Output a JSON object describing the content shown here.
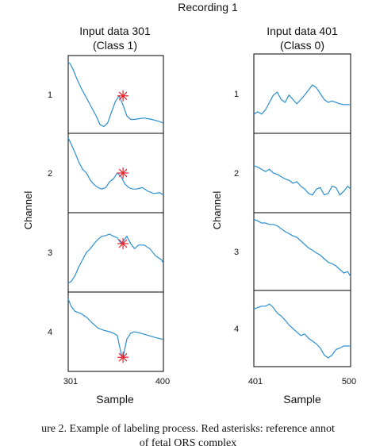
{
  "figure": {
    "title": "Recording 1",
    "caption_line1": "ure 2. Example of labeling process. Red asterisks: reference annot",
    "caption_line2": "of fetal QRS complex"
  },
  "chart_data": [
    {
      "type": "line",
      "title": "Input data 301",
      "subtitle": "(Class 1)",
      "xlabel": "Sample",
      "ylabel": "Channel",
      "x_ticks": [
        "301",
        "400"
      ],
      "xlim": [
        301,
        400
      ],
      "channel_labels": [
        "1",
        "2",
        "3",
        "4"
      ],
      "series": [
        {
          "name": "1",
          "x": [
            301,
            303,
            306,
            310,
            314,
            318,
            322,
            326,
            330,
            334,
            338,
            342,
            346,
            350,
            354,
            358,
            362,
            366,
            370,
            374,
            380,
            388,
            396,
            400
          ],
          "y": [
            0.95,
            0.93,
            0.85,
            0.72,
            0.6,
            0.5,
            0.4,
            0.3,
            0.2,
            0.08,
            0.05,
            0.1,
            0.25,
            0.4,
            0.48,
            0.35,
            0.2,
            0.15,
            0.15,
            0.16,
            0.17,
            0.15,
            0.12,
            0.1
          ]
        },
        {
          "name": "2",
          "x": [
            301,
            304,
            308,
            312,
            316,
            320,
            324,
            328,
            332,
            336,
            340,
            344,
            348,
            352,
            356,
            360,
            364,
            368,
            372,
            378,
            384,
            390,
            396,
            400
          ],
          "y": [
            0.98,
            0.9,
            0.78,
            0.65,
            0.55,
            0.5,
            0.4,
            0.34,
            0.3,
            0.28,
            0.3,
            0.38,
            0.42,
            0.5,
            0.45,
            0.35,
            0.3,
            0.28,
            0.28,
            0.3,
            0.25,
            0.22,
            0.23,
            0.2
          ]
        },
        {
          "name": "3",
          "x": [
            301,
            304,
            308,
            312,
            316,
            320,
            324,
            328,
            332,
            336,
            340,
            344,
            348,
            352,
            356,
            358,
            362,
            366,
            370,
            374,
            380,
            386,
            392,
            398,
            400
          ],
          "y": [
            0.08,
            0.1,
            0.18,
            0.3,
            0.4,
            0.5,
            0.55,
            0.62,
            0.68,
            0.72,
            0.73,
            0.75,
            0.72,
            0.7,
            0.62,
            0.65,
            0.72,
            0.62,
            0.55,
            0.6,
            0.6,
            0.55,
            0.45,
            0.4,
            0.35
          ]
        },
        {
          "name": "4",
          "x": [
            301,
            304,
            308,
            314,
            320,
            326,
            332,
            338,
            344,
            348,
            352,
            356,
            358,
            362,
            366,
            370,
            376,
            384,
            392,
            398,
            400
          ],
          "y": [
            0.95,
            0.85,
            0.78,
            0.75,
            0.7,
            0.62,
            0.55,
            0.52,
            0.5,
            0.48,
            0.45,
            0.2,
            0.15,
            0.4,
            0.48,
            0.5,
            0.48,
            0.45,
            0.42,
            0.4,
            0.4
          ]
        }
      ],
      "annotations": [
        {
          "channel": "1",
          "x": 358,
          "y": 0.48
        },
        {
          "channel": "2",
          "x": 358,
          "y": 0.5
        },
        {
          "channel": "3",
          "x": 358,
          "y": 0.62
        },
        {
          "channel": "4",
          "x": 358,
          "y": 0.15
        }
      ]
    },
    {
      "type": "line",
      "title": "Input data 401",
      "subtitle": "(Class 0)",
      "xlabel": "Sample",
      "ylabel": "Channel",
      "x_ticks": [
        "401",
        "500"
      ],
      "xlim": [
        401,
        500
      ],
      "channel_labels": [
        "1",
        "2",
        "3",
        "4"
      ],
      "series": [
        {
          "name": "1",
          "x": [
            401,
            405,
            409,
            413,
            417,
            421,
            425,
            429,
            433,
            437,
            441,
            445,
            449,
            453,
            457,
            461,
            465,
            469,
            473,
            477,
            481,
            485,
            489,
            493,
            497,
            500
          ],
          "y": [
            0.22,
            0.25,
            0.22,
            0.28,
            0.38,
            0.48,
            0.52,
            0.42,
            0.38,
            0.48,
            0.42,
            0.36,
            0.42,
            0.48,
            0.55,
            0.62,
            0.58,
            0.5,
            0.42,
            0.38,
            0.4,
            0.38,
            0.36,
            0.35,
            0.35,
            0.35
          ]
        },
        {
          "name": "2",
          "x": [
            401,
            405,
            409,
            413,
            417,
            421,
            425,
            429,
            433,
            437,
            441,
            445,
            449,
            453,
            457,
            461,
            465,
            469,
            473,
            477,
            481,
            485,
            489,
            493,
            497,
            500
          ],
          "y": [
            0.6,
            0.58,
            0.55,
            0.52,
            0.55,
            0.5,
            0.48,
            0.45,
            0.42,
            0.4,
            0.36,
            0.38,
            0.32,
            0.28,
            0.22,
            0.2,
            0.28,
            0.3,
            0.2,
            0.22,
            0.32,
            0.3,
            0.2,
            0.25,
            0.32,
            0.28
          ]
        },
        {
          "name": "3",
          "x": [
            401,
            405,
            409,
            413,
            417,
            421,
            425,
            429,
            433,
            437,
            441,
            445,
            449,
            453,
            457,
            461,
            465,
            469,
            473,
            477,
            481,
            485,
            489,
            493,
            497,
            500
          ],
          "y": [
            0.95,
            0.93,
            0.9,
            0.9,
            0.88,
            0.88,
            0.86,
            0.82,
            0.78,
            0.75,
            0.72,
            0.7,
            0.65,
            0.6,
            0.55,
            0.52,
            0.48,
            0.45,
            0.4,
            0.35,
            0.33,
            0.3,
            0.25,
            0.2,
            0.22,
            0.15
          ]
        },
        {
          "name": "4",
          "x": [
            401,
            405,
            409,
            413,
            417,
            421,
            425,
            429,
            433,
            437,
            441,
            445,
            449,
            453,
            457,
            461,
            465,
            469,
            473,
            477,
            481,
            485,
            489,
            493,
            497,
            500
          ],
          "y": [
            0.78,
            0.8,
            0.82,
            0.82,
            0.85,
            0.8,
            0.72,
            0.68,
            0.62,
            0.55,
            0.5,
            0.45,
            0.4,
            0.42,
            0.36,
            0.32,
            0.28,
            0.22,
            0.12,
            0.08,
            0.12,
            0.2,
            0.22,
            0.25,
            0.25,
            0.25
          ]
        }
      ],
      "annotations": []
    }
  ]
}
